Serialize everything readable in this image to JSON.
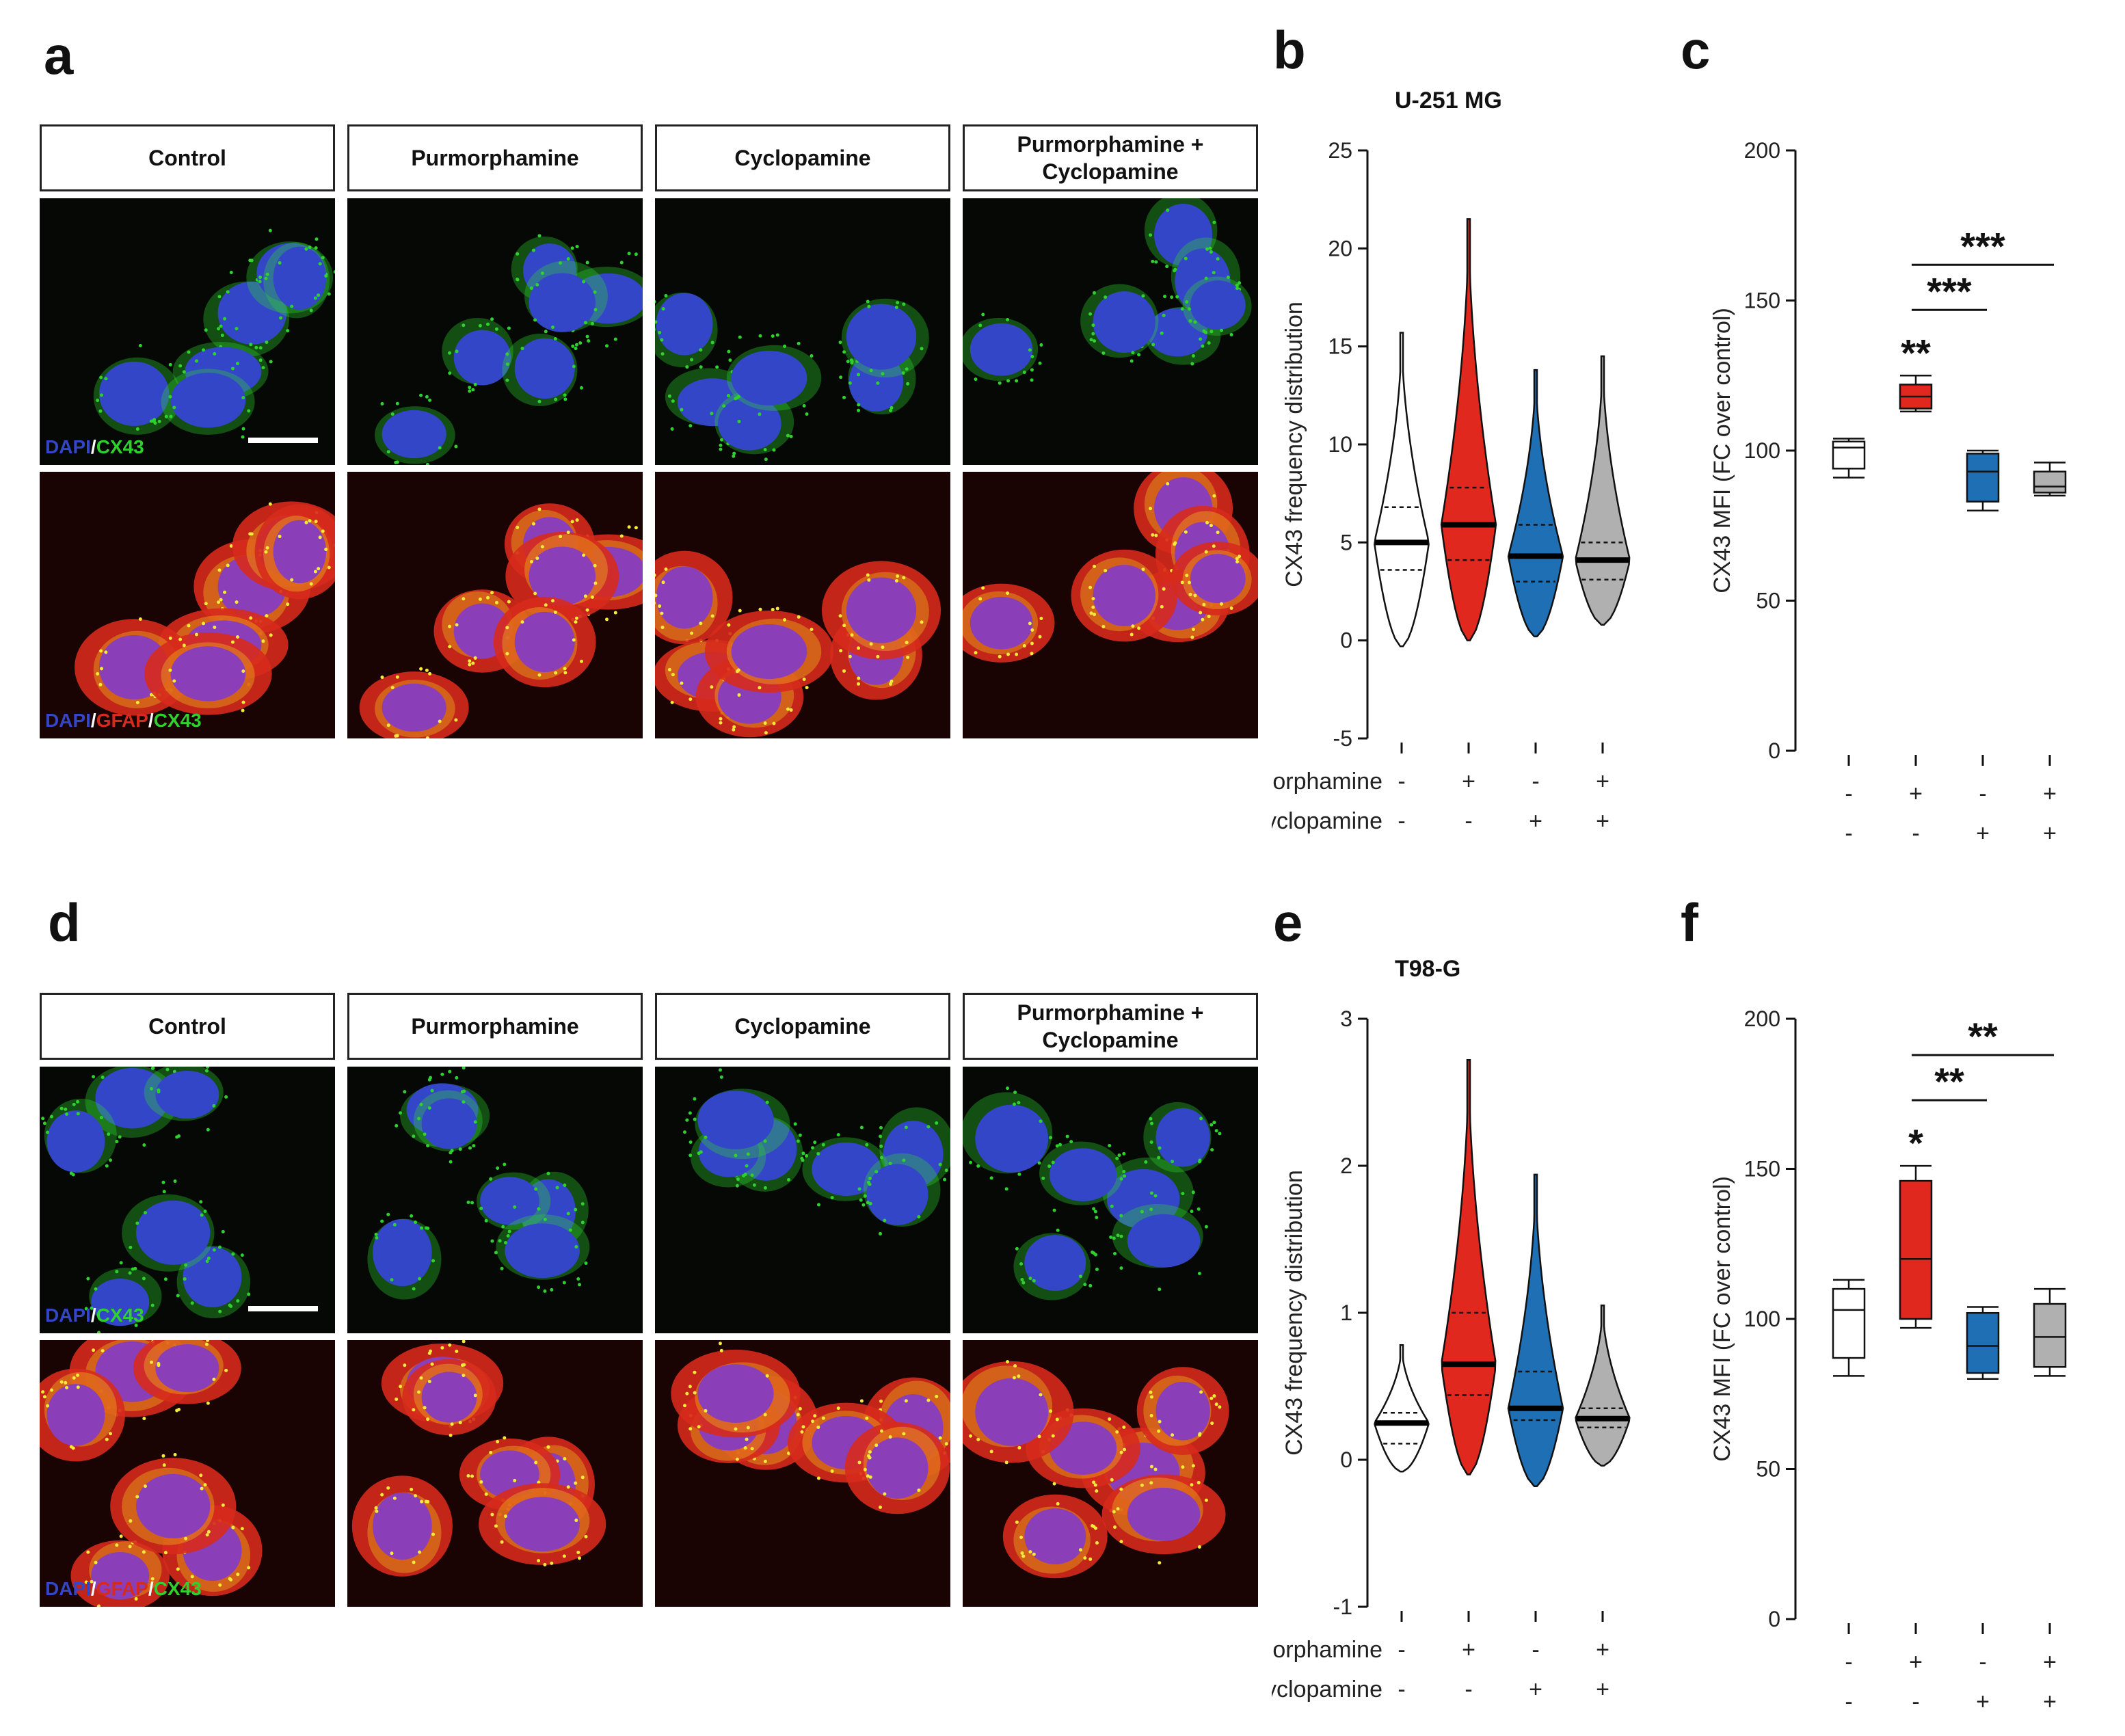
{
  "figure": {
    "panels": [
      {
        "letter": "a"
      },
      {
        "letter": "b"
      },
      {
        "letter": "c"
      },
      {
        "letter": "d"
      },
      {
        "letter": "e"
      },
      {
        "letter": "f"
      }
    ],
    "microscopy": [
      {
        "panel": "a",
        "conditions": [
          "Control",
          "Purmorphamine",
          "Cyclopamine",
          "Purmorphamine + Cyclopamine"
        ],
        "stain_top": {
          "a": "DAPI",
          "sep": "/",
          "b": "CX43"
        },
        "stain_bottom": {
          "a": "DAPI",
          "sep1": "/",
          "b": "GFAP",
          "sep2": "/",
          "c": "CX43"
        }
      },
      {
        "panel": "d",
        "conditions": [
          "Control",
          "Purmorphamine",
          "Cyclopamine",
          "Purmorphamine + Cyclopamine"
        ],
        "stain_top": {
          "a": "DAPI",
          "sep": "/",
          "b": "CX43"
        },
        "stain_bottom": {
          "a": "DAPI",
          "sep1": "/",
          "b": "GFAP",
          "sep2": "/",
          "c": "CX43"
        }
      }
    ],
    "treatment_rows": {
      "row1_label": "Purmorphamine",
      "row2_label": "Cyclopamine",
      "row1": [
        "-",
        "+",
        "-",
        "+"
      ],
      "row2": [
        "-",
        "-",
        "+",
        "+"
      ]
    },
    "colors": {
      "control": "#ffffff",
      "purmorphamine": "#e0281e",
      "cyclopamine": "#1f6fb5",
      "combo": "#b0b0b0",
      "dapi": "#3446c8",
      "cx43": "#2ed12e",
      "gfap": "#d62a1c"
    }
  },
  "chart_data": [
    {
      "panel": "b",
      "type": "violin",
      "title": "U-251 MG",
      "ylabel": "CX43 frequency distribution",
      "ylim": [
        -5,
        25
      ],
      "yticks": [
        -5,
        0,
        5,
        10,
        15,
        20,
        25
      ],
      "groups": [
        {
          "name": "Control",
          "min": -0.3,
          "max": 15.7,
          "q1": 3.6,
          "median": 5.0,
          "q3": 6.8
        },
        {
          "name": "Purmorphamine",
          "min": 0.0,
          "max": 21.5,
          "q1": 4.1,
          "median": 5.9,
          "q3": 7.8
        },
        {
          "name": "Cyclopamine",
          "min": 0.2,
          "max": 13.8,
          "q1": 3.0,
          "median": 4.3,
          "q3": 5.9
        },
        {
          "name": "Purmorphamine + Cyclopamine",
          "min": 0.8,
          "max": 14.5,
          "q1": 3.1,
          "median": 4.1,
          "q3": 5.0
        }
      ]
    },
    {
      "panel": "c",
      "type": "box",
      "ylabel": "CX43 MFI (FC over control)",
      "ylim": [
        0,
        200
      ],
      "yticks": [
        0,
        50,
        100,
        150,
        200
      ],
      "groups": [
        {
          "name": "Control",
          "min": 91,
          "q1": 94,
          "median": 101,
          "q3": 103,
          "max": 104
        },
        {
          "name": "Purmorphamine",
          "min": 113,
          "q1": 114,
          "median": 118,
          "q3": 122,
          "max": 125
        },
        {
          "name": "Cyclopamine",
          "min": 80,
          "q1": 83,
          "median": 93,
          "q3": 99,
          "max": 100
        },
        {
          "name": "Purmorphamine + Cyclopamine",
          "min": 85,
          "q1": 86,
          "median": 88,
          "q3": 93,
          "max": 96
        }
      ],
      "annotations": [
        {
          "label": "**",
          "group": 1
        },
        {
          "label": "***",
          "from": 1,
          "to": 2
        },
        {
          "label": "***",
          "from": 1,
          "to": 3
        }
      ]
    },
    {
      "panel": "e",
      "type": "violin",
      "title": "T98-G",
      "ylabel": "CX43 frequency distribution",
      "ylim": [
        -1,
        3
      ],
      "yticks": [
        -1,
        0,
        1,
        2,
        3
      ],
      "groups": [
        {
          "name": "Control",
          "min": -0.08,
          "max": 0.78,
          "q1": 0.11,
          "median": 0.25,
          "q3": 0.32
        },
        {
          "name": "Purmorphamine",
          "min": -0.1,
          "max": 2.72,
          "q1": 0.44,
          "median": 0.65,
          "q3": 1.0
        },
        {
          "name": "Cyclopamine",
          "min": -0.18,
          "max": 1.94,
          "q1": 0.27,
          "median": 0.35,
          "q3": 0.6
        },
        {
          "name": "Purmorphamine + Cyclopamine",
          "min": -0.04,
          "max": 1.05,
          "q1": 0.22,
          "median": 0.28,
          "q3": 0.35
        }
      ]
    },
    {
      "panel": "f",
      "type": "box",
      "ylabel": "CX43 MFI (FC over control)",
      "ylim": [
        0,
        200
      ],
      "yticks": [
        0,
        50,
        100,
        150,
        200
      ],
      "groups": [
        {
          "name": "Control",
          "min": 81,
          "q1": 87,
          "median": 103,
          "q3": 110,
          "max": 113
        },
        {
          "name": "Purmorphamine",
          "min": 97,
          "q1": 100,
          "median": 120,
          "q3": 146,
          "max": 151
        },
        {
          "name": "Cyclopamine",
          "min": 80,
          "q1": 82,
          "median": 91,
          "q3": 102,
          "max": 104
        },
        {
          "name": "Purmorphamine + Cyclopamine",
          "min": 81,
          "q1": 84,
          "median": 94,
          "q3": 105,
          "max": 110
        }
      ],
      "annotations": [
        {
          "label": "*",
          "group": 1
        },
        {
          "label": "**",
          "from": 1,
          "to": 2
        },
        {
          "label": "**",
          "from": 1,
          "to": 3
        }
      ]
    }
  ]
}
